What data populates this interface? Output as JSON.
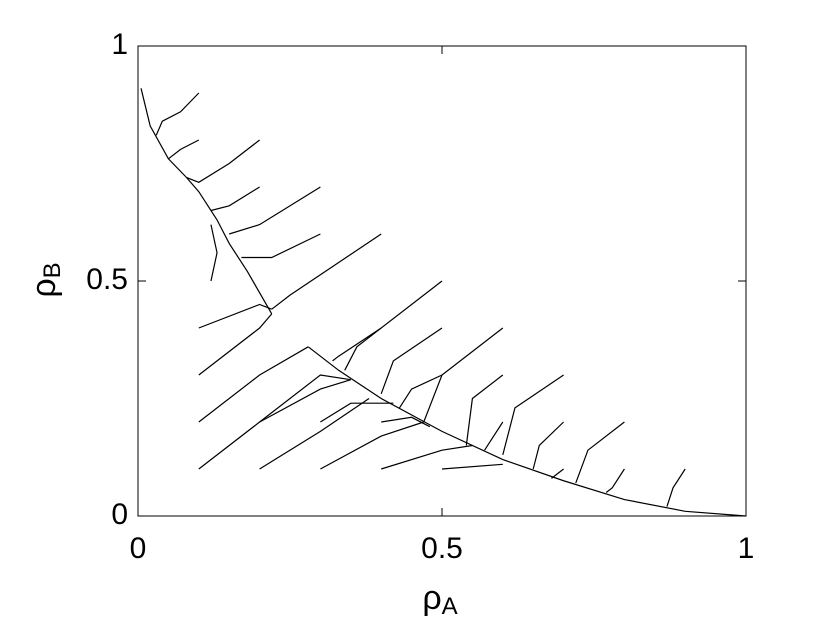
{
  "chart_data": {
    "type": "line",
    "xlabel": {
      "symbol": "ρ",
      "subscript": "A"
    },
    "ylabel": {
      "symbol": "ρ",
      "subscript": "B"
    },
    "xlim": [
      0,
      1
    ],
    "ylim": [
      0,
      1
    ],
    "xticks": [
      0,
      0.5,
      1
    ],
    "yticks": [
      0,
      0.5,
      1
    ],
    "color": "#000000",
    "series": [
      {
        "x": [
          0.005,
          0.02,
          0.05,
          0.08,
          0.1,
          0.13,
          0.15,
          0.18,
          0.22
        ],
        "values": [
          0.91,
          0.83,
          0.76,
          0.72,
          0.69,
          0.63,
          0.58,
          0.52,
          0.43
        ]
      },
      {
        "x": [
          0.28,
          0.33,
          0.4,
          0.5,
          0.6,
          0.7,
          0.8,
          0.9,
          1
        ],
        "values": [
          0.36,
          0.31,
          0.25,
          0.18,
          0.12,
          0.075,
          0.035,
          0.01,
          0
        ]
      },
      {
        "x": [
          0.1,
          0.07,
          0.04,
          0.03
        ],
        "values": [
          0.9,
          0.86,
          0.84,
          0.81
        ]
      },
      {
        "x": [
          0.1,
          0.07,
          0.05
        ],
        "values": [
          0.8,
          0.78,
          0.76
        ]
      },
      {
        "x": [
          0.2,
          0.15,
          0.1,
          0.08
        ],
        "values": [
          0.8,
          0.75,
          0.71,
          0.72
        ]
      },
      {
        "x": [
          0.2,
          0.15,
          0.12
        ],
        "values": [
          0.7,
          0.66,
          0.65
        ]
      },
      {
        "x": [
          0.3,
          0.2,
          0.15
        ],
        "values": [
          0.7,
          0.62,
          0.6
        ]
      },
      {
        "x": [
          0.3,
          0.22,
          0.17
        ],
        "values": [
          0.6,
          0.55,
          0.55
        ]
      },
      {
        "x": [
          0.4,
          0.25,
          0.22
        ],
        "values": [
          0.6,
          0.47,
          0.44
        ]
      },
      {
        "x": [
          0.12,
          0.13,
          0.12
        ],
        "values": [
          0.5,
          0.56,
          0.62
        ]
      },
      {
        "x": [
          0.1,
          0.2,
          0.22
        ],
        "values": [
          0.4,
          0.45,
          0.44
        ]
      },
      {
        "x": [
          0.1,
          0.2,
          0.22
        ],
        "values": [
          0.3,
          0.4,
          0.43
        ]
      },
      {
        "x": [
          0.1,
          0.2,
          0.28
        ],
        "values": [
          0.2,
          0.3,
          0.36
        ]
      },
      {
        "x": [
          0.1,
          0.2,
          0.3,
          0.35
        ],
        "values": [
          0.1,
          0.2,
          0.3,
          0.29
        ]
      },
      {
        "x": [
          0.2,
          0.3,
          0.38
        ],
        "values": [
          0.1,
          0.18,
          0.25
        ]
      },
      {
        "x": [
          0.2,
          0.3,
          0.35
        ],
        "values": [
          0.2,
          0.27,
          0.29
        ]
      },
      {
        "x": [
          0.3,
          0.4,
          0.47
        ],
        "values": [
          0.1,
          0.17,
          0.2
        ]
      },
      {
        "x": [
          0.3,
          0.35,
          0.42
        ],
        "values": [
          0.2,
          0.24,
          0.24
        ]
      },
      {
        "x": [
          0.4,
          0.5,
          0.55
        ],
        "values": [
          0.1,
          0.14,
          0.15
        ]
      },
      {
        "x": [
          0.4,
          0.45,
          0.48
        ],
        "values": [
          0.2,
          0.21,
          0.19
        ]
      },
      {
        "x": [
          0.5,
          0.6
        ],
        "values": [
          0.1,
          0.11
        ]
      },
      {
        "x": [
          0.5,
          0.36,
          0.34
        ],
        "values": [
          0.5,
          0.36,
          0.31
        ]
      },
      {
        "x": [
          0.4,
          0.33,
          0.32
        ],
        "values": [
          0.4,
          0.34,
          0.33
        ]
      },
      {
        "x": [
          0.5,
          0.42,
          0.4
        ],
        "values": [
          0.4,
          0.33,
          0.26
        ]
      },
      {
        "x": [
          0.6,
          0.5,
          0.47
        ],
        "values": [
          0.4,
          0.3,
          0.2
        ]
      },
      {
        "x": [
          0.5,
          0.45,
          0.43
        ],
        "values": [
          0.3,
          0.27,
          0.23
        ]
      },
      {
        "x": [
          0.6,
          0.55,
          0.54
        ],
        "values": [
          0.3,
          0.25,
          0.15
        ]
      },
      {
        "x": [
          0.7,
          0.62,
          0.6
        ],
        "values": [
          0.3,
          0.23,
          0.13
        ]
      },
      {
        "x": [
          0.6,
          0.58,
          0.57
        ],
        "values": [
          0.2,
          0.16,
          0.14
        ]
      },
      {
        "x": [
          0.7,
          0.66,
          0.65
        ],
        "values": [
          0.2,
          0.15,
          0.1
        ]
      },
      {
        "x": [
          0.8,
          0.74,
          0.72
        ],
        "values": [
          0.2,
          0.14,
          0.07
        ]
      },
      {
        "x": [
          0.8,
          0.78,
          0.77
        ],
        "values": [
          0.1,
          0.06,
          0.05
        ]
      },
      {
        "x": [
          0.9,
          0.88,
          0.87
        ],
        "values": [
          0.1,
          0.06,
          0.02
        ]
      },
      {
        "x": [
          0.7,
          0.68
        ],
        "values": [
          0.1,
          0.08
        ]
      }
    ]
  }
}
